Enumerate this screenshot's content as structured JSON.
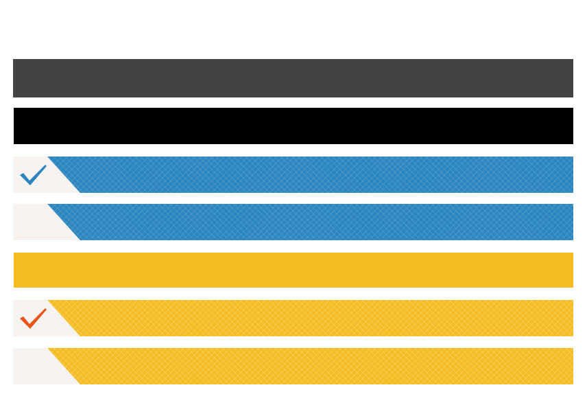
{
  "bars": [
    {
      "kind": "solid",
      "color": "#434343"
    },
    {
      "kind": "solid",
      "color": "#000000"
    },
    {
      "kind": "option",
      "color": "#2b85bf",
      "checked": true,
      "check_color": "#2b85bf",
      "icon": "checkmark-icon"
    },
    {
      "kind": "option",
      "color": "#2b85bf",
      "checked": false
    },
    {
      "kind": "solid",
      "color": "#f5bc22"
    },
    {
      "kind": "option",
      "color": "#f5bc22",
      "checked": true,
      "check_color": "#e8541c",
      "icon": "checkmark-icon"
    },
    {
      "kind": "option",
      "color": "#f5bc22",
      "checked": false
    }
  ]
}
